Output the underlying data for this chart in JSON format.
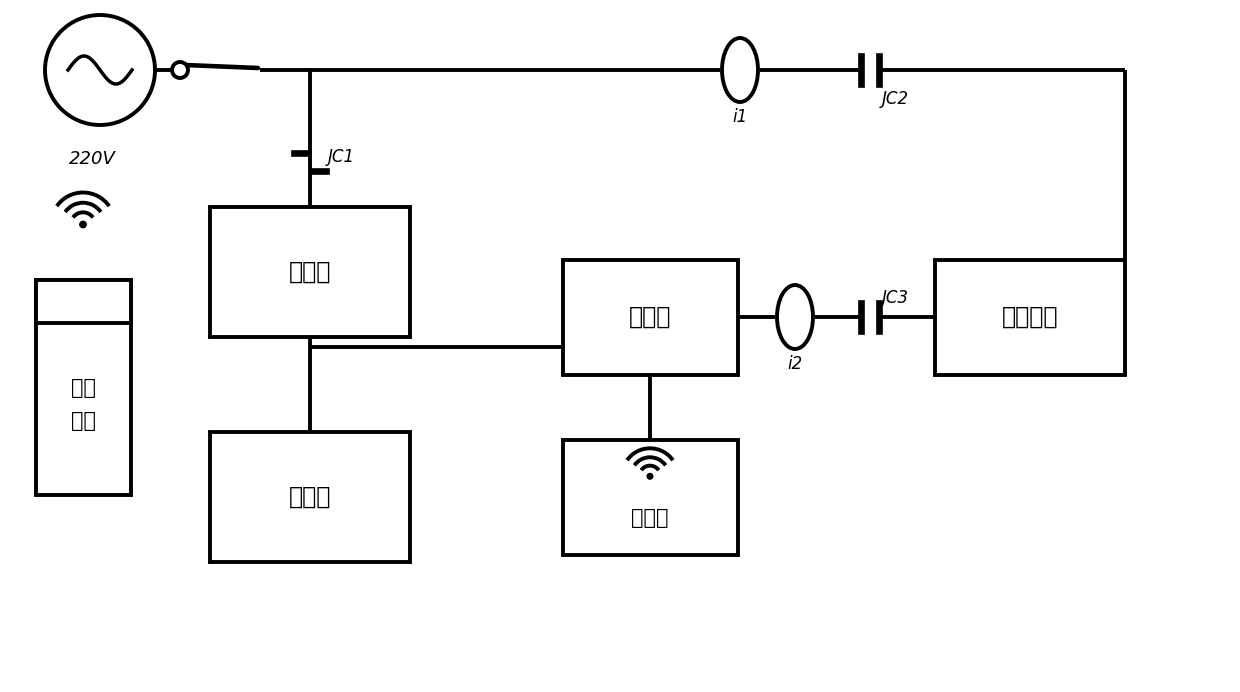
{
  "bg": "#ffffff",
  "lc": "#000000",
  "lw": 2.8,
  "fw": 12.4,
  "fh": 6.92,
  "texts": {
    "220V": "220V",
    "JC1": "JC1",
    "JC2": "JC2",
    "JC3": "JC3",
    "i1": "i1",
    "i2": "i2",
    "charger": "充电器",
    "battery": "蓄电器",
    "inverter": "逆变器",
    "controller": "控制器",
    "user": "用户电器",
    "smart": "智能\n终端"
  }
}
